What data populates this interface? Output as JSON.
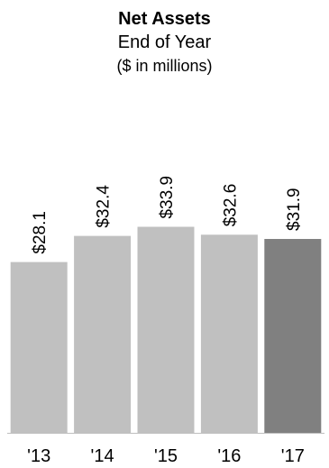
{
  "chart_data": {
    "type": "bar",
    "title": "Net Assets",
    "subtitle": "End of Year",
    "subtitle2": "($ in millions)",
    "categories": [
      "'13",
      "'14",
      "'15",
      "'16",
      "'17"
    ],
    "values": [
      28.1,
      32.4,
      33.9,
      32.6,
      31.9
    ],
    "value_labels": [
      "$28.1",
      "$32.4",
      "$33.9",
      "$32.6",
      "$31.9"
    ],
    "ylim": [
      0,
      40
    ],
    "grid": false,
    "legend": "none",
    "colors": {
      "bar": "#c0c0c0",
      "highlight_bar": "#808080",
      "axis": "#bfbfbf"
    },
    "highlight_index": 4
  }
}
